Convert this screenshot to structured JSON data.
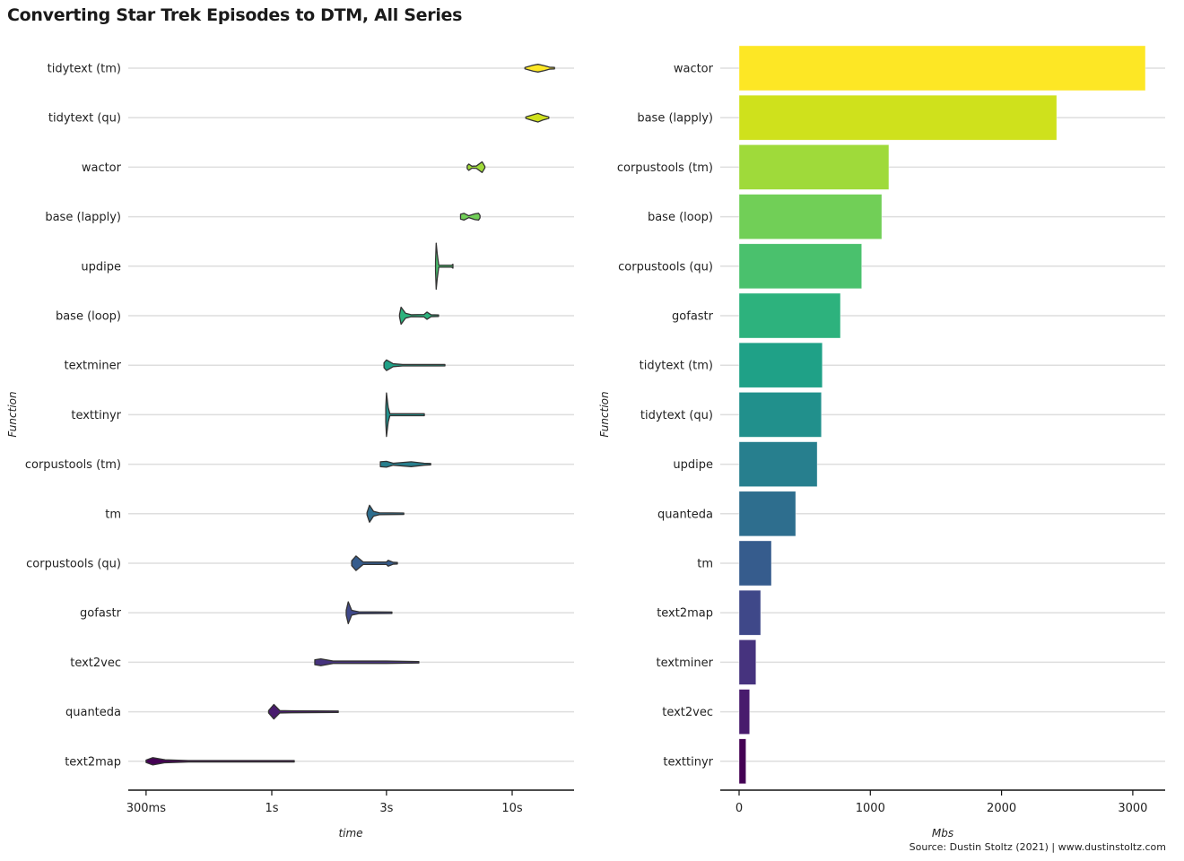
{
  "title": "Converting Star Trek Episodes to DTM, All Series",
  "caption": "Source: Dustin Stoltz (2021) | www.dustinstoltz.com",
  "chart_data": [
    {
      "type": "violin",
      "xlabel": "time",
      "ylabel": "Function",
      "x_scale": "log",
      "xlim_seconds": [
        0.253,
        18.1
      ],
      "x_ticks": [
        {
          "value": 0.3,
          "label": "300ms"
        },
        {
          "value": 1,
          "label": "1s"
        },
        {
          "value": 3,
          "label": "3s"
        },
        {
          "value": 10,
          "label": "10s"
        }
      ],
      "grid": "horizontal",
      "categories": [
        "tidytext (tm)",
        "tidytext (qu)",
        "wactor",
        "base (lapply)",
        "updipe",
        "base (loop)",
        "textminer",
        "texttinyr",
        "corpustools (tm)",
        "tm",
        "corpustools (qu)",
        "gofastr",
        "text2vec",
        "quanteda",
        "text2map"
      ],
      "colors": [
        "#FDE725",
        "#CFE11C",
        "#9FDA3A",
        "#71CF57",
        "#4AC16D",
        "#2DB27D",
        "#1FA187",
        "#21908C",
        "#277F8E",
        "#2E6E8E",
        "#365C8D",
        "#3F4889",
        "#46337E",
        "#481B6D",
        "#440154"
      ],
      "series": [
        {
          "category": "tidytext (tm)",
          "min": 11.3,
          "max": 15.0,
          "density": [
            [
              11.3,
              0.02
            ],
            [
              12.2,
              0.12
            ],
            [
              12.8,
              0.16
            ],
            [
              13.6,
              0.1
            ],
            [
              14.3,
              0.04
            ],
            [
              15.0,
              0.01
            ]
          ]
        },
        {
          "category": "tidytext (qu)",
          "min": 11.4,
          "max": 14.2,
          "density": [
            [
              11.4,
              0.02
            ],
            [
              12.2,
              0.12
            ],
            [
              12.8,
              0.18
            ],
            [
              13.4,
              0.1
            ],
            [
              14.2,
              0.01
            ]
          ]
        },
        {
          "category": "wactor",
          "min": 6.5,
          "max": 7.7,
          "density": [
            [
              6.5,
              0.06
            ],
            [
              6.6,
              0.13
            ],
            [
              6.8,
              0.04
            ],
            [
              7.1,
              0.05
            ],
            [
              7.5,
              0.22
            ],
            [
              7.7,
              0.03
            ]
          ]
        },
        {
          "category": "base (lapply)",
          "min": 6.1,
          "max": 7.35,
          "density": [
            [
              6.1,
              0.1
            ],
            [
              6.3,
              0.14
            ],
            [
              6.6,
              0.04
            ],
            [
              7.0,
              0.12
            ],
            [
              7.25,
              0.14
            ],
            [
              7.35,
              0.05
            ]
          ]
        },
        {
          "category": "updipe",
          "min": 4.8,
          "max": 5.67,
          "density": [
            [
              4.8,
              0.2
            ],
            [
              4.83,
              0.95
            ],
            [
              4.88,
              0.5
            ],
            [
              4.95,
              0.04
            ],
            [
              5.6,
              0.04
            ],
            [
              5.67,
              0.08
            ]
          ]
        },
        {
          "category": "base (loop)",
          "min": 3.4,
          "max": 4.94,
          "density": [
            [
              3.4,
              0.05
            ],
            [
              3.45,
              0.35
            ],
            [
              3.6,
              0.1
            ],
            [
              3.8,
              0.04
            ],
            [
              4.3,
              0.05
            ],
            [
              4.42,
              0.15
            ],
            [
              4.6,
              0.04
            ],
            [
              4.94,
              0.03
            ]
          ]
        },
        {
          "category": "textminer",
          "min": 2.93,
          "max": 5.25,
          "density": [
            [
              2.93,
              0.1
            ],
            [
              3.0,
              0.22
            ],
            [
              3.2,
              0.06
            ],
            [
              3.5,
              0.03
            ],
            [
              5.0,
              0.03
            ],
            [
              5.25,
              0.02
            ]
          ]
        },
        {
          "category": "texttinyr",
          "min": 2.98,
          "max": 4.31,
          "density": [
            [
              2.98,
              0.3
            ],
            [
              3.0,
              0.9
            ],
            [
              3.05,
              0.3
            ],
            [
              3.1,
              0.04
            ],
            [
              4.31,
              0.04
            ]
          ]
        },
        {
          "category": "corpustools (tm)",
          "min": 2.83,
          "max": 4.58,
          "density": [
            [
              2.83,
              0.1
            ],
            [
              3.0,
              0.12
            ],
            [
              3.2,
              0.04
            ],
            [
              3.8,
              0.1
            ],
            [
              4.3,
              0.04
            ],
            [
              4.58,
              0.02
            ]
          ]
        },
        {
          "category": "tm",
          "min": 2.49,
          "max": 3.54,
          "density": [
            [
              2.49,
              0.05
            ],
            [
              2.55,
              0.35
            ],
            [
              2.65,
              0.1
            ],
            [
              2.8,
              0.04
            ],
            [
              3.54,
              0.03
            ]
          ]
        },
        {
          "category": "corpustools (qu)",
          "min": 2.15,
          "max": 3.33,
          "density": [
            [
              2.15,
              0.1
            ],
            [
              2.24,
              0.3
            ],
            [
              2.4,
              0.05
            ],
            [
              3.0,
              0.05
            ],
            [
              3.05,
              0.12
            ],
            [
              3.2,
              0.04
            ],
            [
              3.33,
              0.03
            ]
          ]
        },
        {
          "category": "gofastr",
          "min": 2.04,
          "max": 3.16,
          "density": [
            [
              2.04,
              0.1
            ],
            [
              2.08,
              0.45
            ],
            [
              2.15,
              0.1
            ],
            [
              2.3,
              0.04
            ],
            [
              3.16,
              0.03
            ]
          ]
        },
        {
          "category": "text2vec",
          "min": 1.51,
          "max": 4.09,
          "density": [
            [
              1.51,
              0.1
            ],
            [
              1.6,
              0.14
            ],
            [
              1.8,
              0.05
            ],
            [
              3.0,
              0.05
            ],
            [
              4.09,
              0.02
            ]
          ]
        },
        {
          "category": "quanteda",
          "min": 0.97,
          "max": 1.89,
          "density": [
            [
              0.97,
              0.05
            ],
            [
              1.02,
              0.3
            ],
            [
              1.08,
              0.05
            ],
            [
              1.2,
              0.04
            ],
            [
              1.89,
              0.03
            ]
          ]
        },
        {
          "category": "text2map",
          "min": 0.3,
          "max": 1.24,
          "density": [
            [
              0.3,
              0.05
            ],
            [
              0.32,
              0.15
            ],
            [
              0.36,
              0.06
            ],
            [
              0.45,
              0.03
            ],
            [
              1.24,
              0.03
            ]
          ]
        }
      ]
    },
    {
      "type": "bar",
      "orientation": "horizontal",
      "xlabel": "Mbs",
      "ylabel": "Function",
      "xlim": [
        -145,
        3240
      ],
      "x_ticks": [
        0,
        1000,
        2000,
        3000
      ],
      "grid": "horizontal",
      "categories": [
        "wactor",
        "base (lapply)",
        "corpustools (tm)",
        "base (loop)",
        "corpustools (qu)",
        "gofastr",
        "tidytext (tm)",
        "tidytext (qu)",
        "updipe",
        "quanteda",
        "tm",
        "text2map",
        "textminer",
        "text2vec",
        "texttinyr"
      ],
      "values": [
        3096,
        2420,
        1141,
        1087,
        934,
        772,
        634,
        627,
        595,
        431,
        246,
        164,
        128,
        80,
        52
      ],
      "colors": [
        "#FDE725",
        "#CFE11C",
        "#9FDA3A",
        "#71CF57",
        "#4AC16D",
        "#2DB27D",
        "#1FA187",
        "#21908C",
        "#277F8E",
        "#2E6E8E",
        "#365C8D",
        "#3F4889",
        "#46337E",
        "#481B6D",
        "#440154"
      ]
    }
  ]
}
